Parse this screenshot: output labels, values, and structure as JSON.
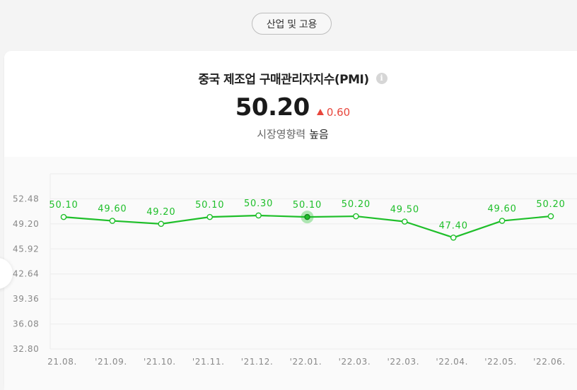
{
  "category_pill": "산업 및 고용",
  "header": {
    "title": "중국 제조업 구매관리자지수(PMI)",
    "info_icon": "info-icon",
    "value": "50.20",
    "change": "0.60",
    "change_direction": "up",
    "change_color": "#e8463c",
    "impact_label": "시장영향력",
    "impact_value": "높음"
  },
  "colors": {
    "line": "#1fbf2a",
    "grid": "#ececec",
    "axis_text": "#888888"
  },
  "chart_data": {
    "type": "line",
    "categories": [
      "21.08.",
      "'21.09.",
      "'21.10.",
      "'21.11.",
      "'21.12.",
      "'22.01.",
      "'22.03.",
      "'22.03.",
      "'22.04.",
      "'22.05.",
      "'22.06."
    ],
    "values": [
      50.1,
      49.6,
      49.2,
      50.1,
      50.3,
      50.1,
      50.2,
      49.5,
      47.4,
      49.6,
      50.2
    ],
    "value_labels": [
      "50.10",
      "49.60",
      "49.20",
      "50.10",
      "50.30",
      "50.10",
      "50.20",
      "49.50",
      "47.40",
      "49.60",
      "50.20"
    ],
    "y_ticks": [
      "52.48",
      "49.20",
      "45.92",
      "42.64",
      "39.36",
      "36.08",
      "32.80"
    ],
    "ylim": [
      32.8,
      55.76
    ],
    "highlighted_index": 5,
    "grid": true
  }
}
